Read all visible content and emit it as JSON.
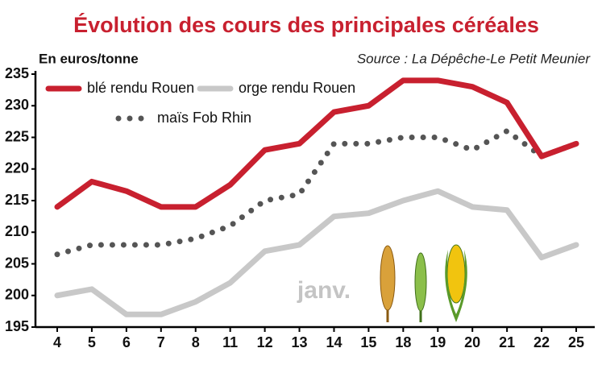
{
  "chart_data": {
    "type": "line",
    "title": "Évolution des cours des principales céréales",
    "y_label": "En euros/tonne",
    "source": "Source : La Dépêche-Le Petit Meunier",
    "annotation": "janv.",
    "categories": [
      "4",
      "5",
      "6",
      "7",
      "8",
      "11",
      "12",
      "13",
      "14",
      "15",
      "18",
      "19",
      "20",
      "21",
      "22",
      "25"
    ],
    "series": [
      {
        "name": "blé rendu Rouen",
        "color": "#c8202f",
        "style": "solid",
        "values": [
          214,
          218,
          216.5,
          214,
          214,
          217.5,
          223,
          224,
          229,
          230,
          234,
          234,
          233,
          230.5,
          222,
          224
        ]
      },
      {
        "name": "orge rendu Rouen",
        "color": "#c8c8c8",
        "style": "solid",
        "values": [
          200,
          201,
          197,
          197,
          199,
          202,
          207,
          208,
          212.5,
          213,
          215,
          216.5,
          214,
          213.5,
          206,
          208
        ]
      },
      {
        "name": "maïs Fob Rhin",
        "color": "#555555",
        "style": "dotted",
        "values": [
          206.5,
          208,
          208,
          208,
          209,
          211,
          215,
          216,
          224,
          224,
          225,
          225,
          223,
          226,
          222,
          224
        ]
      }
    ],
    "ylim": [
      195,
      235
    ],
    "yticks": [
      195,
      200,
      205,
      210,
      215,
      220,
      225,
      230,
      235
    ],
    "grid": false
  }
}
